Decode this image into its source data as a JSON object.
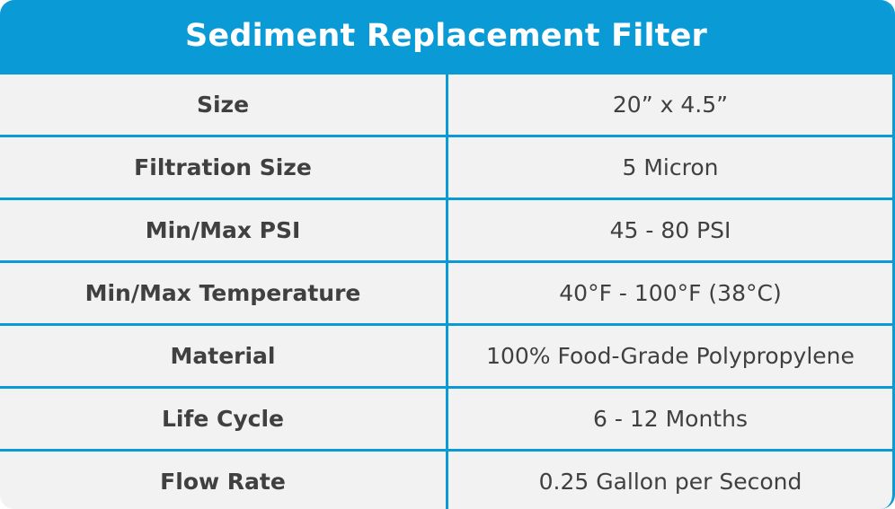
{
  "table": {
    "title": "Sediment Replacement Filter",
    "rows": [
      {
        "label": "Size",
        "value": "20” x 4.5”"
      },
      {
        "label": "Filtration Size",
        "value": "5 Micron"
      },
      {
        "label": "Min/Max PSI",
        "value": "45 - 80 PSI"
      },
      {
        "label": "Min/Max Temperature",
        "value": "40°F - 100°F (38°C)"
      },
      {
        "label": "Material",
        "value": "100% Food-Grade Polypropylene"
      },
      {
        "label": "Life Cycle",
        "value": "6 - 12 Months"
      },
      {
        "label": "Flow Rate",
        "value": "0.25 Gallon per Second"
      }
    ]
  },
  "colors": {
    "accent": "#0a9ad6",
    "row_background": "#f2f2f2",
    "text": "#404040",
    "title_text": "#ffffff"
  }
}
